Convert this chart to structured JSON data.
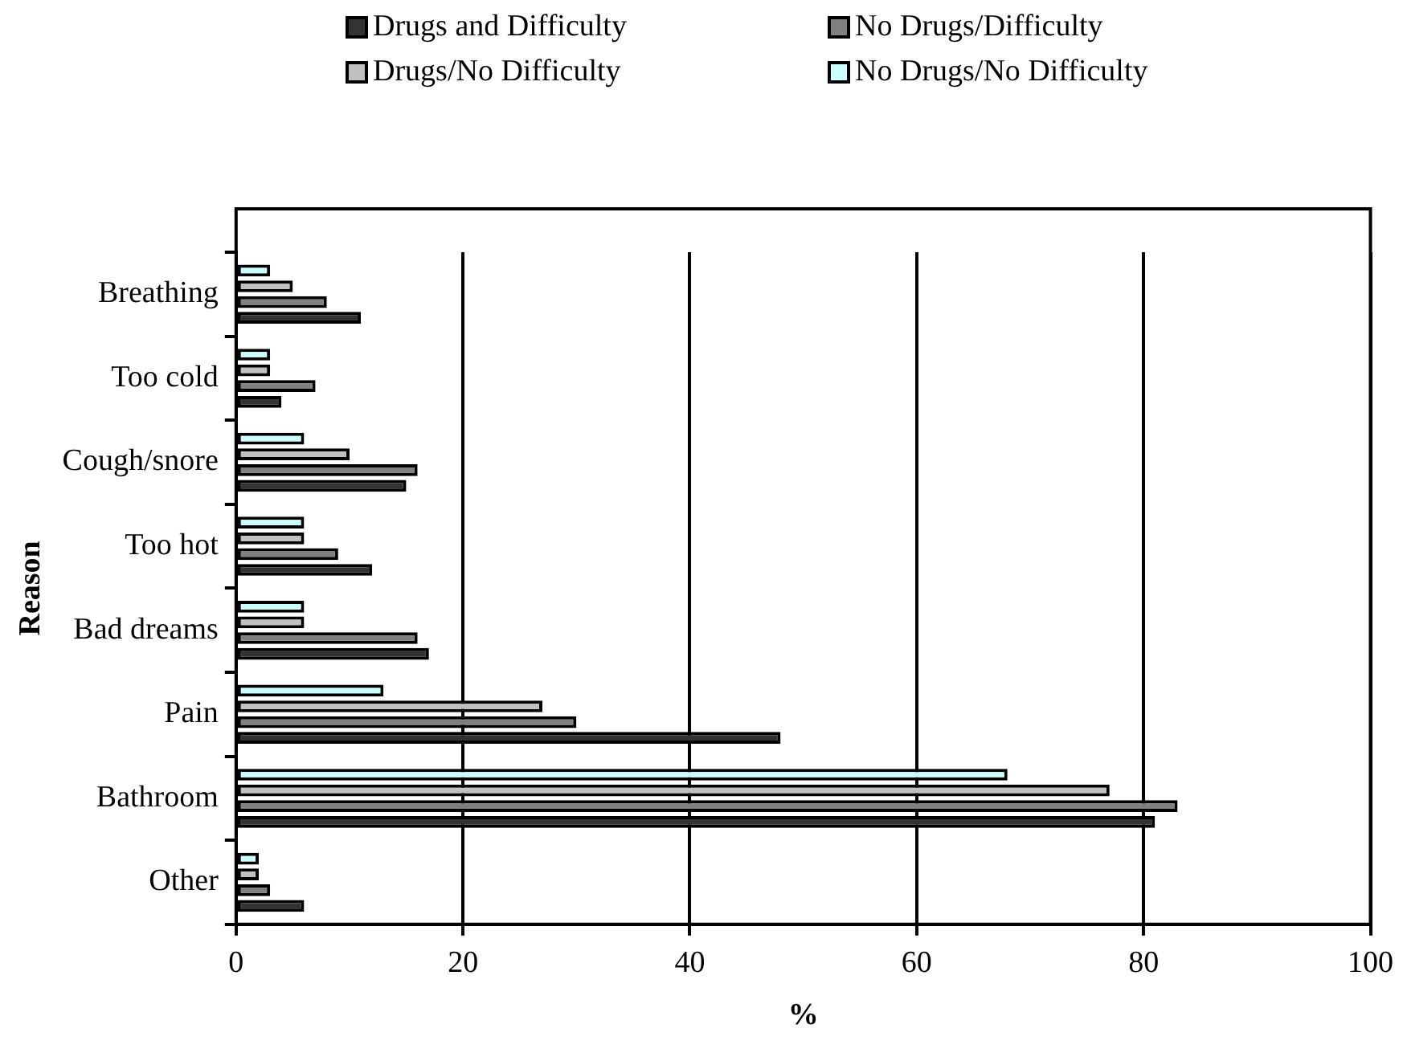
{
  "chart_data": {
    "type": "bar",
    "orientation": "horizontal",
    "xlabel": "%",
    "ylabel": "Reason",
    "categories": [
      "Breathing",
      "Too cold",
      "Cough/snore",
      "Too hot",
      "Bad dreams",
      "Pain",
      "Bathroom",
      "Other"
    ],
    "series": [
      {
        "name": "Drugs and Difficulty",
        "color": "#333333",
        "values": [
          11,
          4,
          15,
          12,
          17,
          48,
          81,
          6
        ]
      },
      {
        "name": "No Drugs/Difficulty",
        "color": "#808080",
        "values": [
          8,
          7,
          16,
          9,
          16,
          30,
          83,
          3
        ]
      },
      {
        "name": "Drugs/No Difficulty",
        "color": "#c0c0c0",
        "values": [
          5,
          3,
          10,
          6,
          6,
          27,
          77,
          2
        ]
      },
      {
        "name": "No Drugs/No Difficulty",
        "color": "#ccffff",
        "values": [
          3,
          3,
          6,
          6,
          6,
          13,
          68,
          2
        ]
      }
    ],
    "xlim": [
      0,
      100
    ],
    "xticks": [
      0,
      20,
      40,
      60,
      80,
      100
    ],
    "grid": "x",
    "legend": "top"
  }
}
